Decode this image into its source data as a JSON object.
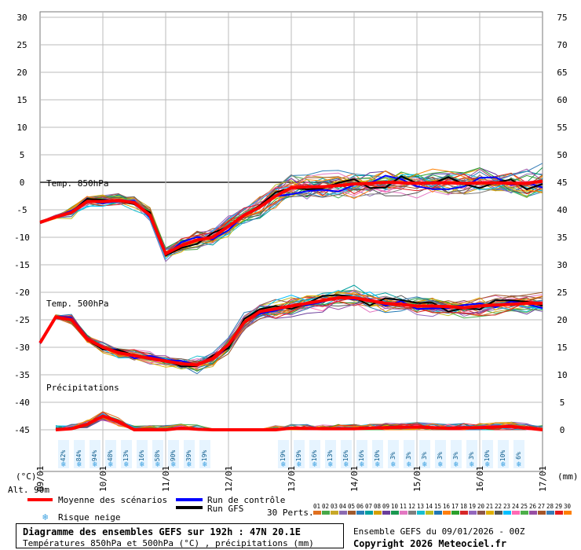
{
  "chart_data": {
    "type": "line",
    "title": "Diagramme des ensembles GEFS sur 192h : 47N 20.1E",
    "subtitle": "Températures 850hPa et 500hPa (°C) , précipitations (mm)",
    "ensemble_info": "Ensemble GEFS du 09/01/2026 - 00Z",
    "copyright": "Copyright 2026 Meteociel.fr",
    "left_axis": {
      "unit_label": "(°C)",
      "ylim": [
        -50,
        30
      ],
      "ticks": [
        30,
        25,
        20,
        15,
        10,
        5,
        0,
        -5,
        -10,
        -15,
        -20,
        -25,
        -30,
        -35,
        -40,
        -45
      ]
    },
    "right_axis": {
      "unit_label": "(mm)",
      "ticks": [
        75,
        70,
        65,
        60,
        55,
        50,
        45,
        40,
        35,
        30,
        25,
        20,
        15,
        10,
        5,
        0
      ]
    },
    "x_dates": [
      "09/01",
      "10/01",
      "11/01",
      "12/01",
      "13/01",
      "14/01",
      "15/01",
      "16/01",
      "17/01"
    ],
    "x_hours": [
      0,
      192
    ],
    "alt_label": "Alt. 90m",
    "section_labels": {
      "t850": "Temp. 850hPa",
      "t500": "Temp. 500hPa",
      "precip": "Précipitations"
    },
    "mean_t850": [
      [
        0,
        -7.3
      ],
      [
        6,
        -6.3
      ],
      [
        12,
        -5.5
      ],
      [
        18,
        -3.5
      ],
      [
        24,
        -3.5
      ],
      [
        30,
        -3.3
      ],
      [
        36,
        -3.7
      ],
      [
        42,
        -6
      ],
      [
        48,
        -13
      ],
      [
        54,
        -11.5
      ],
      [
        60,
        -10.5
      ],
      [
        66,
        -10
      ],
      [
        72,
        -8
      ],
      [
        78,
        -6
      ],
      [
        84,
        -4.5
      ],
      [
        90,
        -2.5
      ],
      [
        96,
        -1
      ],
      [
        102,
        -0.8
      ],
      [
        108,
        -0.8
      ],
      [
        114,
        -0.6
      ],
      [
        120,
        -0.3
      ],
      [
        126,
        -0.2
      ],
      [
        132,
        0
      ],
      [
        138,
        -0.1
      ],
      [
        144,
        -0.2
      ],
      [
        150,
        -0.1
      ],
      [
        156,
        -0.1
      ],
      [
        162,
        -0.2
      ],
      [
        168,
        -0.1
      ],
      [
        174,
        -0.1
      ],
      [
        180,
        -0.2
      ],
      [
        186,
        -0.2
      ],
      [
        192,
        0.2
      ]
    ],
    "mean_t500": [
      [
        0,
        -29.2
      ],
      [
        6,
        -24.5
      ],
      [
        12,
        -25
      ],
      [
        18,
        -28.5
      ],
      [
        24,
        -30
      ],
      [
        30,
        -31
      ],
      [
        36,
        -31.5
      ],
      [
        42,
        -32
      ],
      [
        48,
        -32.5
      ],
      [
        54,
        -33
      ],
      [
        60,
        -33.2
      ],
      [
        66,
        -32
      ],
      [
        72,
        -29.5
      ],
      [
        78,
        -25.5
      ],
      [
        84,
        -23.5
      ],
      [
        90,
        -23
      ],
      [
        96,
        -22.5
      ],
      [
        102,
        -22
      ],
      [
        108,
        -21.5
      ],
      [
        114,
        -21
      ],
      [
        120,
        -21
      ],
      [
        126,
        -21.5
      ],
      [
        132,
        -22
      ],
      [
        138,
        -22.2
      ],
      [
        144,
        -22.5
      ],
      [
        150,
        -22.5
      ],
      [
        156,
        -22.6
      ],
      [
        162,
        -22.8
      ],
      [
        168,
        -22.5
      ],
      [
        174,
        -22.3
      ],
      [
        180,
        -22.2
      ],
      [
        186,
        -22
      ],
      [
        192,
        -22
      ]
    ],
    "mean_precip_mm": [
      [
        6,
        0
      ],
      [
        12,
        0.2
      ],
      [
        18,
        1
      ],
      [
        24,
        2.5
      ],
      [
        30,
        1.5
      ],
      [
        36,
        0
      ],
      [
        42,
        0
      ],
      [
        48,
        0
      ],
      [
        54,
        0.3
      ],
      [
        60,
        0.1
      ],
      [
        66,
        0
      ],
      [
        72,
        0
      ],
      [
        84,
        0
      ],
      [
        90,
        0
      ],
      [
        96,
        0.3
      ],
      [
        108,
        0.2
      ],
      [
        120,
        0.2
      ],
      [
        132,
        0.4
      ],
      [
        144,
        0.5
      ],
      [
        156,
        0.3
      ],
      [
        168,
        0.4
      ],
      [
        180,
        0.6
      ],
      [
        192,
        0
      ]
    ],
    "snow_risk_pct": [
      {
        "h": 9,
        "pct": "42%"
      },
      {
        "h": 15,
        "pct": "84%"
      },
      {
        "h": 21,
        "pct": "94%"
      },
      {
        "h": 27,
        "pct": "48%"
      },
      {
        "h": 33,
        "pct": "13%"
      },
      {
        "h": 39,
        "pct": "16%"
      },
      {
        "h": 45,
        "pct": "58%"
      },
      {
        "h": 51,
        "pct": "90%"
      },
      {
        "h": 57,
        "pct": "39%"
      },
      {
        "h": 63,
        "pct": "19%"
      },
      {
        "h": 93,
        "pct": "19%"
      },
      {
        "h": 99,
        "pct": "19%"
      },
      {
        "h": 105,
        "pct": "16%"
      },
      {
        "h": 111,
        "pct": "13%"
      },
      {
        "h": 117,
        "pct": "16%"
      },
      {
        "h": 123,
        "pct": "16%"
      },
      {
        "h": 129,
        "pct": "10%"
      },
      {
        "h": 135,
        "pct": "3%"
      },
      {
        "h": 141,
        "pct": "3%"
      },
      {
        "h": 147,
        "pct": "3%"
      },
      {
        "h": 153,
        "pct": "3%"
      },
      {
        "h": 159,
        "pct": "3%"
      },
      {
        "h": 165,
        "pct": "3%"
      },
      {
        "h": 171,
        "pct": "10%"
      },
      {
        "h": 177,
        "pct": "10%"
      },
      {
        "h": 183,
        "pct": "6%"
      }
    ],
    "perturbation_numbers": [
      "01",
      "02",
      "03",
      "04",
      "05",
      "06",
      "07",
      "08",
      "09",
      "10",
      "11",
      "12",
      "13",
      "14",
      "15",
      "16",
      "17",
      "18",
      "19",
      "20",
      "21",
      "22",
      "23",
      "24",
      "25",
      "26",
      "27",
      "28",
      "29",
      "30"
    ],
    "perturbation_colors": [
      "#e07020",
      "#48a848",
      "#c8a828",
      "#8c6bb1",
      "#a05a2c",
      "#2c7fb8",
      "#00a0a0",
      "#d4a000",
      "#6a3d9a",
      "#1a9850",
      "#e377c2",
      "#7f7f7f",
      "#17becf",
      "#bcbd22",
      "#1f77b4",
      "#ff7f0e",
      "#2ca02c",
      "#d62728",
      "#9467bd",
      "#8c564b",
      "#e0b000",
      "#555555",
      "#00bfff",
      "#ff69b4",
      "#4daf4a",
      "#984ea3",
      "#a65628",
      "#377eb8",
      "#e41a1c",
      "#ff7f00"
    ],
    "legend": {
      "mean": {
        "label": "Moyenne des scénarios",
        "color": "#ff0000"
      },
      "control": {
        "label": "Run de contrôle",
        "color": "#0000ff"
      },
      "gfs": {
        "label": "Run GFS",
        "color": "#000000"
      },
      "snow": {
        "label": "Risque neige",
        "color": "#3aa0e0"
      },
      "perts": {
        "label": "30 Perts."
      }
    }
  }
}
